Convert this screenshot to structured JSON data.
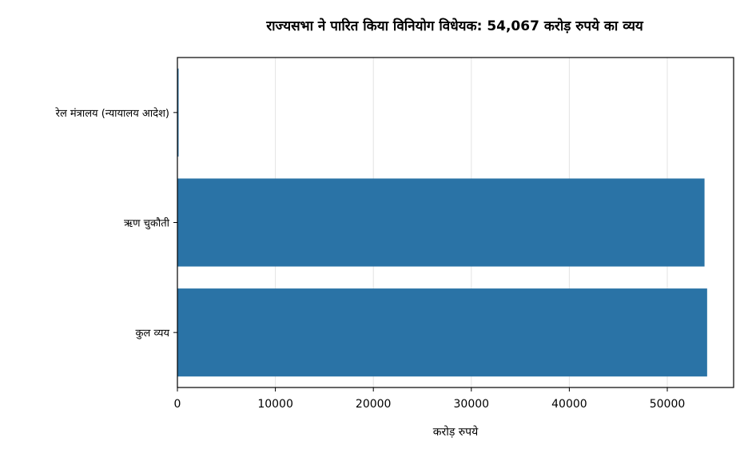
{
  "chart_data": {
    "type": "bar",
    "orientation": "horizontal",
    "title": "राज्यसभा ने पारित किया विनियोग विधेयक: 54,067 करोड़ रुपये का व्यय",
    "xlabel": "करोड़ रुपये",
    "ylabel": "",
    "categories": [
      "रेल मंत्रालय (न्यायालय आदेश)",
      "ऋण चुकौती",
      "कुल व्यय"
    ],
    "values": [
      12,
      53800,
      54067
    ],
    "xlim": [
      0,
      56770
    ],
    "xticks": [
      0,
      10000,
      20000,
      30000,
      40000,
      50000
    ],
    "grid": "x",
    "bar_color": "#2a73a6"
  }
}
